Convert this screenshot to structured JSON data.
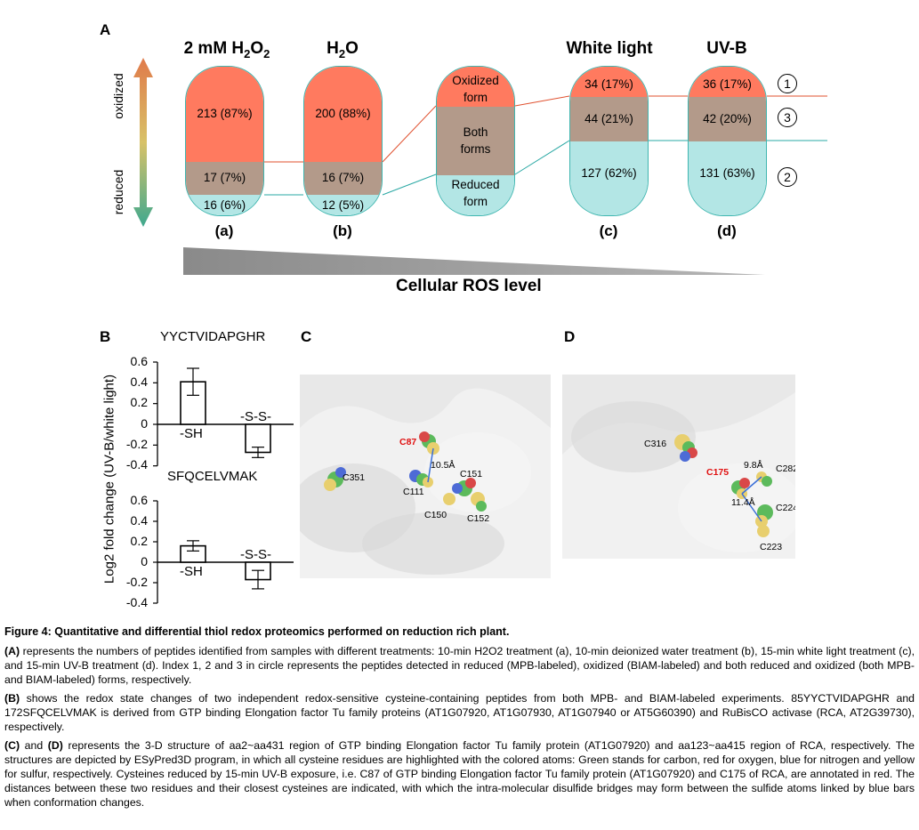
{
  "panelA": {
    "letter": "A",
    "columns": [
      {
        "header": "2 mM H2O2",
        "header_parts": [
          "2 mM H",
          "2",
          "O",
          "2"
        ],
        "oxidized": "213 (87%)",
        "both": "17 (7%)",
        "reduced": "16 (6%)",
        "sub": "(a)"
      },
      {
        "header": "H2O",
        "header_parts": [
          "H",
          "2",
          "O"
        ],
        "oxidized": "200 (88%)",
        "both": "16 (7%)",
        "reduced": "12 (5%)",
        "sub": "(b)"
      },
      {
        "header": "",
        "oxidized": "Oxidized form",
        "both": "Both forms",
        "reduced": "Reduced form",
        "sub": ""
      },
      {
        "header": "White light",
        "oxidized": "34 (17%)",
        "both": "44 (21%)",
        "reduced": "127 (62%)",
        "sub": "(c)"
      },
      {
        "header": "UV-B",
        "oxidized": "36 (17%)",
        "both": "42 (20%)",
        "reduced": "131 (63%)",
        "sub": "(d)"
      }
    ],
    "legend": {
      "oxidized_word": "oxidized",
      "reduced_word": "reduced"
    },
    "index_circles": [
      "1",
      "3",
      "2"
    ],
    "ros_label": "Cellular ROS level",
    "colors": {
      "oxidized": "#ff7a5f",
      "both": "#b39a8a",
      "reduced": "#b3e6e5"
    }
  },
  "panelB": {
    "letter": "B",
    "ylabel": "Log2 fold change (UV-B/white light)",
    "charts": [
      {
        "peptide": "YYCTVIDAPGHR",
        "ticks": [
          "0.6",
          "0.4",
          "0.2",
          "0",
          "-0.2",
          "-0.4"
        ]
      },
      {
        "peptide": "SFQCELVMAK",
        "ticks": [
          "0.6",
          "0.4",
          "0.2",
          "0",
          "-0.2",
          "-0.4"
        ]
      }
    ]
  },
  "chart_data": [
    {
      "type": "bar",
      "title": "YYCTVIDAPGHR",
      "categories": [
        "-SH",
        "-S-S-"
      ],
      "values": [
        0.41,
        -0.27
      ],
      "errors": [
        0.13,
        0.05
      ],
      "ylabel": "Log2 fold change (UV-B/white light)",
      "ylim": [
        -0.4,
        0.6
      ]
    },
    {
      "type": "bar",
      "title": "SFQCELVMAK",
      "categories": [
        "-SH",
        "-S-S-"
      ],
      "values": [
        0.16,
        -0.17
      ],
      "errors": [
        0.05,
        0.09
      ],
      "ylabel": "Log2 fold change (UV-B/white light)",
      "ylim": [
        -0.4,
        0.6
      ]
    }
  ],
  "panelC": {
    "letter": "C",
    "labels": {
      "c87": "C87",
      "dist": "10.5Å",
      "c151": "C151",
      "c351": "C351",
      "c111": "C111",
      "c150": "C150",
      "c152": "C152"
    }
  },
  "panelD": {
    "letter": "D",
    "labels": {
      "c316": "C316",
      "c175": "C175",
      "dist1": "9.8Å",
      "c282": "C282",
      "dist2": "11.4Å",
      "c224": "C224",
      "c223": "C223"
    }
  },
  "caption": {
    "title": "Figure 4: Quantitative and differential thiol redox proteomics performed on reduction rich plant.",
    "a_bold": "(A)",
    "a_text": " represents the numbers of peptides identified from samples with different treatments: 10-min H2O2 treatment (a), 10-min deionized water treatment (b), 15-min white light treatment (c), and 15-min UV-B treatment (d). Index 1, 2 and 3 in circle represents the peptides detected in reduced (MPB-labeled), oxidized (BIAM-labeled) and both reduced and oxidized (both MPB- and BIAM-labeled) forms, respectively.",
    "b_bold": "(B)",
    "b_text": " shows the redox state changes of two independent redox-sensitive cysteine-containing peptides from both MPB- and BIAM-labeled experiments. 85YYCTVIDAPGHR and 172SFQCELVMAK is derived from GTP binding Elongation factor Tu family proteins (AT1G07920, AT1G07930, AT1G07940 or AT5G60390) and RuBisCO activase (RCA, AT2G39730), respectively.",
    "cd_bold1": "(C)",
    "cd_and": " and ",
    "cd_bold2": "(D)",
    "cd_text": " represents the 3-D structure of aa2~aa431 region of GTP binding Elongation factor Tu family protein (AT1G07920) and aa123~aa415 region of RCA, respectively. The structures are depicted by ESyPred3D program, in which all cysteine residues are highlighted with the colored atoms: Green stands for carbon, red for oxygen, blue for nitrogen and yellow for sulfur, respectively. Cysteines reduced by 15-min UV-B exposure, i.e. C87 of GTP binding Elongation factor Tu family protein (AT1G07920) and C175 of RCA, are annotated in red. The distances between these two residues and their closest cysteines are indicated, with which the intra-molecular disulfide bridges may form between the sulfide atoms linked by blue bars when conformation changes."
  }
}
